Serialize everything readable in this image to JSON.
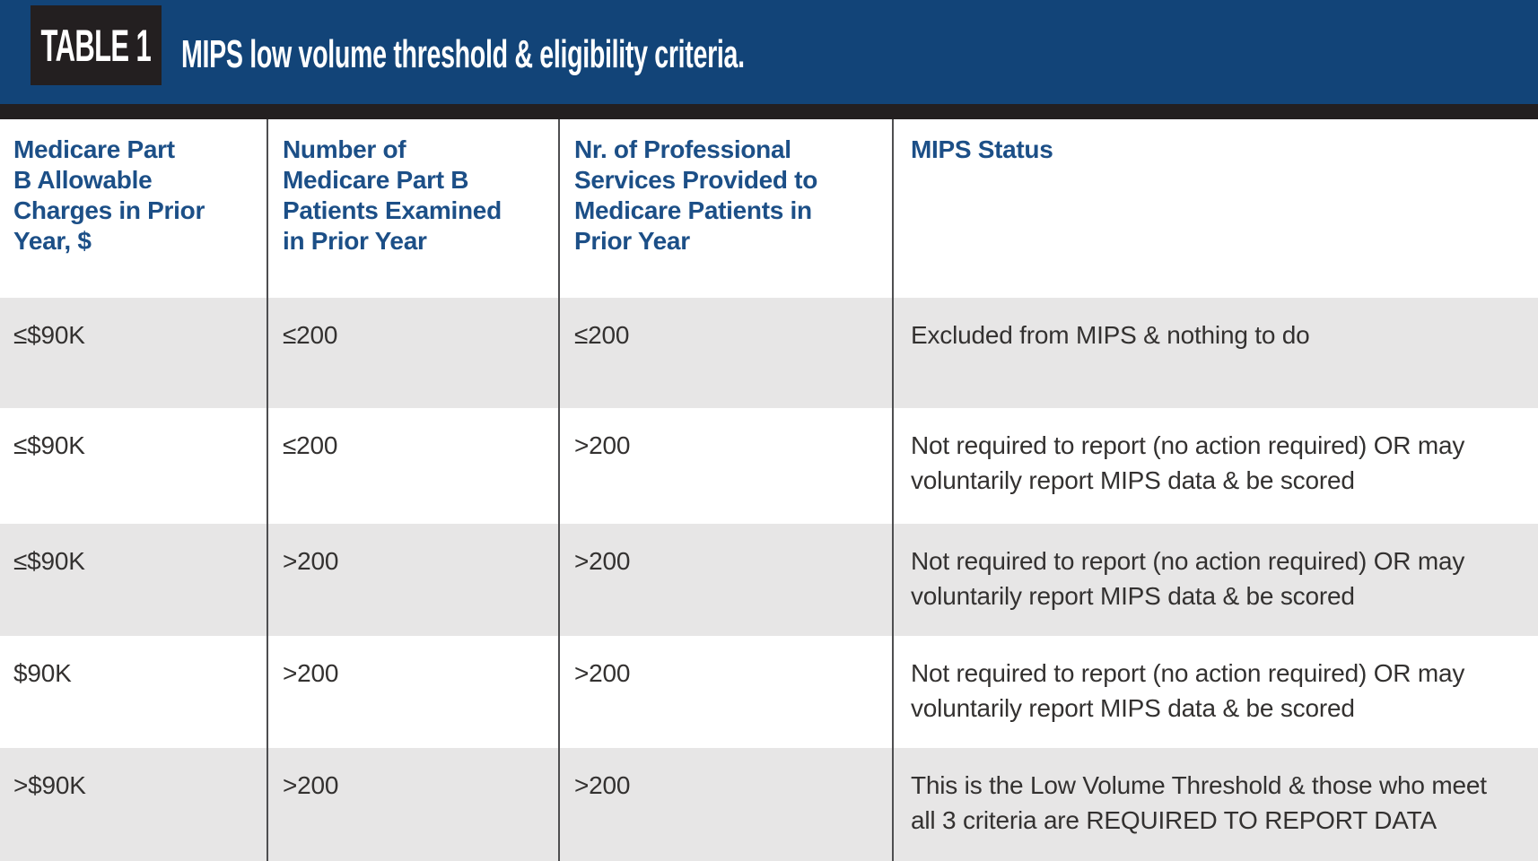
{
  "header": {
    "table_label": "TABLE 1",
    "title": "MIPS low volume threshold & eligibility criteria."
  },
  "table": {
    "columns": [
      {
        "label": "Medicare Part\nB Allowable\nCharges in Prior\nYear, $"
      },
      {
        "label": "Number of\nMedicare Part B\nPatients Examined\nin Prior Year"
      },
      {
        "label": "Nr. of Professional\nServices Provided to\nMedicare Patients in\nPrior Year"
      },
      {
        "label": "MIPS Status"
      }
    ],
    "rows": [
      {
        "charges": "≤$90K",
        "patients": "≤200",
        "services": "≤200",
        "status": "Excluded from MIPS & nothing to do"
      },
      {
        "charges": "≤$90K",
        "patients": "≤200",
        "services": ">200",
        "status": "Not required to report (no action required) OR may\nvoluntarily report MIPS data & be scored"
      },
      {
        "charges": "≤$90K",
        "patients": ">200",
        "services": ">200",
        "status": "Not required to report (no action required) OR may\nvoluntarily report MIPS data & be scored"
      },
      {
        "charges": "$90K",
        "patients": ">200",
        "services": ">200",
        "status": "Not required to report (no action required) OR may\nvoluntarily report MIPS data & be scored"
      },
      {
        "charges": ">$90K",
        "patients": ">200",
        "services": ">200",
        "status": "This is the Low Volume Threshold & those who meet\nall 3 criteria are REQUIRED TO REPORT DATA"
      }
    ]
  },
  "colors": {
    "banner_blue": "#124478",
    "divider_black": "#231f20",
    "header_text_blue": "#1c4f87",
    "row_gray": "#e7e6e6",
    "body_text": "#333130",
    "separator_line": "#4e4e50"
  }
}
